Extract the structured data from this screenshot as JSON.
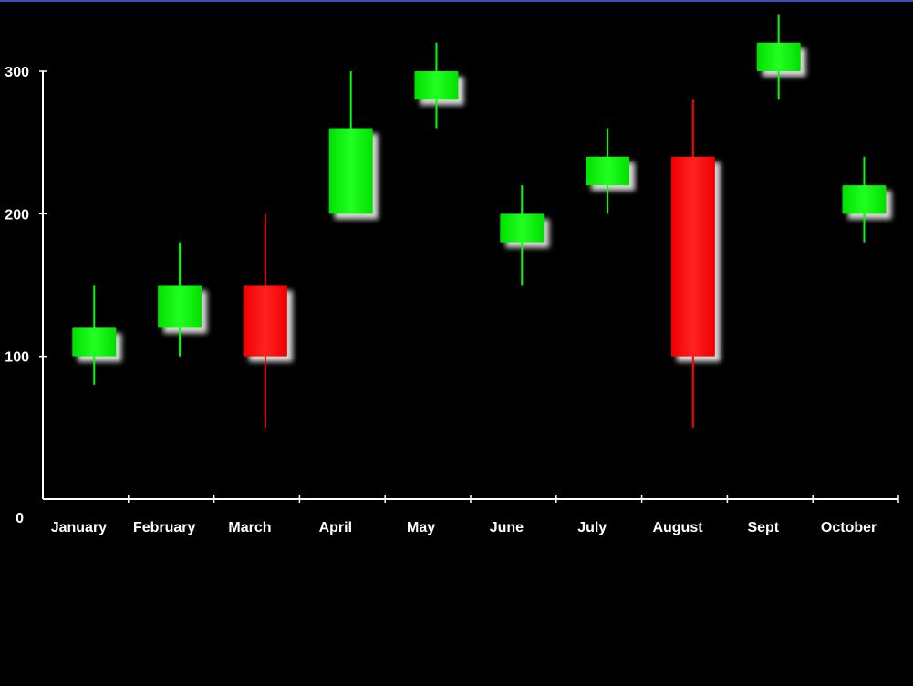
{
  "colors": {
    "top_bar": "#3f4fb5",
    "background": "#000000",
    "axis": "#ffffff",
    "up": "#00ff00",
    "down": "#ff0000",
    "shadow": "#ffffff"
  },
  "chart_data": {
    "type": "candlestick",
    "y_tick_labels": [
      "0",
      "100",
      "200",
      "300"
    ],
    "ylim": [
      0,
      300
    ],
    "grid": false,
    "legend": "none",
    "categories": [
      "January",
      "February",
      "March",
      "April",
      "May",
      "June",
      "July",
      "August",
      "Sept",
      "October"
    ],
    "series": [
      {
        "open": [
          100,
          120,
          150,
          200,
          280,
          180,
          220,
          240,
          300,
          200
        ],
        "high": [
          150,
          180,
          200,
          300,
          320,
          220,
          260,
          280,
          340,
          240
        ],
        "low": [
          80,
          100,
          50,
          200,
          260,
          150,
          200,
          50,
          280,
          180
        ],
        "close": [
          120,
          150,
          100,
          260,
          300,
          200,
          240,
          100,
          320,
          220
        ]
      }
    ]
  }
}
